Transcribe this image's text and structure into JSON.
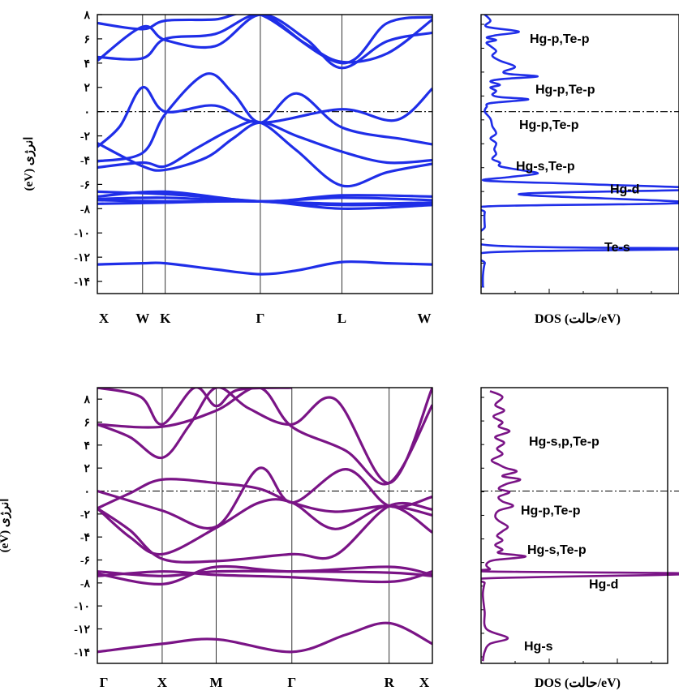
{
  "chart_data": [
    {
      "type": "line",
      "panel": "band-structure",
      "ylabel": "انرژی (eV)",
      "ylim": [
        -15,
        8
      ],
      "yticks": [
        8,
        6,
        4,
        2,
        0,
        -2,
        -4,
        -6,
        -8,
        -10,
        -12,
        -14
      ],
      "ytick_labels": [
        "۸",
        "۶",
        "۴",
        "۲",
        "۰",
        "-۲",
        "-۴",
        "-۶",
        "-۸",
        "-۱۰",
        "-۱۲",
        "-۱۴"
      ],
      "kpoints": [
        {
          "label": "X",
          "pos": 0
        },
        {
          "label": "W",
          "pos": 0.5
        },
        {
          "label": "K",
          "pos": 0.75
        },
        {
          "label": "Γ",
          "pos": 1.8
        },
        {
          "label": "L",
          "pos": 2.7
        },
        {
          "label": "W",
          "pos": 3.7
        }
      ],
      "fermi_level": 0,
      "color": "#1f2ee8",
      "series": [
        {
          "values": [
            [
              0,
              -12.6
            ],
            [
              0.5,
              -12.5
            ],
            [
              0.75,
              -12.5
            ],
            [
              1.3,
              -13.0
            ],
            [
              1.8,
              -13.4
            ],
            [
              2.2,
              -13.1
            ],
            [
              2.7,
              -12.4
            ],
            [
              3.2,
              -12.5
            ],
            [
              3.7,
              -12.6
            ]
          ]
        },
        {
          "values": [
            [
              0,
              -7.3
            ],
            [
              0.75,
              -7.4
            ],
            [
              1.8,
              -7.4
            ],
            [
              2.7,
              -7.6
            ],
            [
              3.7,
              -7.5
            ]
          ]
        },
        {
          "values": [
            [
              0,
              -7.2
            ],
            [
              0.75,
              -7.1
            ],
            [
              1.8,
              -7.4
            ],
            [
              2.7,
              -7.1
            ],
            [
              3.7,
              -7.3
            ]
          ]
        },
        {
          "values": [
            [
              0,
              -7.6
            ],
            [
              0.75,
              -7.5
            ],
            [
              1.8,
              -7.4
            ],
            [
              2.7,
              -8.0
            ],
            [
              3.7,
              -7.7
            ]
          ]
        },
        {
          "values": [
            [
              0,
              -6.6
            ],
            [
              0.75,
              -6.8
            ],
            [
              1.3,
              -7.1
            ],
            [
              1.8,
              -7.4
            ],
            [
              2.7,
              -7.7
            ],
            [
              3.7,
              -7.6
            ]
          ]
        },
        {
          "values": [
            [
              0,
              -7.0
            ],
            [
              0.75,
              -6.6
            ],
            [
              1.8,
              -7.4
            ],
            [
              2.7,
              -6.9
            ],
            [
              3.7,
              -7.0
            ]
          ]
        },
        {
          "values": [
            [
              0,
              -4.6
            ],
            [
              0.5,
              -4.2
            ],
            [
              0.75,
              -4.5
            ],
            [
              1.1,
              -3.0
            ],
            [
              1.5,
              -1.4
            ],
            [
              1.8,
              -0.9
            ],
            [
              2.2,
              -3.2
            ],
            [
              2.7,
              -6.1
            ],
            [
              3.2,
              -5.0
            ],
            [
              3.7,
              -4.3
            ]
          ]
        },
        {
          "values": [
            [
              0,
              -2.6
            ],
            [
              0.5,
              -4.5
            ],
            [
              0.75,
              -4.8
            ],
            [
              1.2,
              -3.8
            ],
            [
              1.5,
              -2.2
            ],
            [
              1.8,
              -0.9
            ],
            [
              2.2,
              -2.0
            ],
            [
              2.7,
              -3.3
            ],
            [
              3.2,
              -4.2
            ],
            [
              3.7,
              -4.0
            ]
          ]
        },
        {
          "values": [
            [
              0,
              -2.9
            ],
            [
              0.25,
              -1.2
            ],
            [
              0.5,
              2.0
            ],
            [
              0.75,
              0.0
            ],
            [
              1.3,
              0.5
            ],
            [
              1.8,
              -0.9
            ],
            [
              2.7,
              0.2
            ],
            [
              3.3,
              -0.7
            ],
            [
              3.7,
              1.9
            ]
          ]
        },
        {
          "values": [
            [
              0,
              -4.1
            ],
            [
              0.5,
              -3.4
            ],
            [
              0.75,
              -0.2
            ],
            [
              1.2,
              3.1
            ],
            [
              1.5,
              1.5
            ],
            [
              1.8,
              -0.9
            ],
            [
              2.2,
              1.5
            ],
            [
              2.7,
              -1.3
            ],
            [
              3.4,
              -2.3
            ],
            [
              3.7,
              -2.7
            ]
          ]
        },
        {
          "values": [
            [
              0,
              4.2
            ],
            [
              0.5,
              7.0
            ],
            [
              0.75,
              5.9
            ],
            [
              1.3,
              5.4
            ],
            [
              1.8,
              8.0
            ],
            [
              2.3,
              6.0
            ],
            [
              2.7,
              3.6
            ],
            [
              3.2,
              5.8
            ],
            [
              3.7,
              6.5
            ]
          ]
        },
        {
          "values": [
            [
              0,
              4.5
            ],
            [
              0.5,
              4.4
            ],
            [
              0.75,
              6.0
            ],
            [
              1.3,
              6.4
            ],
            [
              1.8,
              8.0
            ],
            [
              2.3,
              5.6
            ],
            [
              2.7,
              4.1
            ],
            [
              3.2,
              4.8
            ],
            [
              3.7,
              7.6
            ]
          ]
        },
        {
          "values": [
            [
              0,
              7.3
            ],
            [
              0.5,
              6.8
            ],
            [
              0.75,
              7.5
            ],
            [
              1.3,
              7.6
            ],
            [
              1.8,
              8.0
            ],
            [
              2.7,
              4.0
            ],
            [
              3.2,
              7.3
            ],
            [
              3.7,
              7.8
            ]
          ]
        }
      ]
    },
    {
      "type": "line",
      "panel": "dos",
      "xlabel": "DOS (حالت/eV)",
      "ylim": [
        -15,
        8
      ],
      "fermi_level": 0,
      "color": "#1f2ee8",
      "annotations": [
        {
          "text": "Hg-p,Te-p",
          "y": 6.0
        },
        {
          "text": "Hg-p,Te-p",
          "y": 1.8
        },
        {
          "text": "Hg-p,Te-p",
          "y": -1.1
        },
        {
          "text": "Hg-s,Te-p",
          "y": -4.5
        },
        {
          "text": "Hg-d",
          "y": -6.4
        },
        {
          "text": "Te-s",
          "y": -11.2
        }
      ],
      "x": [
        0.02,
        0.05,
        0.03,
        0.2,
        0.08,
        0.03,
        0.08,
        0.03,
        0.05,
        0.08,
        0.06,
        0.1,
        0.18,
        0.12,
        0.15,
        0.3,
        0.12,
        0.05,
        0.1,
        0.05,
        0.08,
        0.06,
        0.1,
        0.25,
        0.05,
        0.03,
        0.02,
        0.05,
        0.06,
        0.08,
        0.05,
        0.08,
        0.07,
        0.08,
        0.06,
        0.1,
        0.1,
        0.2,
        0.3,
        0.15,
        0.03,
        0.6,
        1.2,
        0.2,
        1.1,
        0.05,
        0.02,
        0.02,
        0.03,
        1.2,
        0.05,
        0.02,
        0.01,
        0.01
      ],
      "y": [
        8.0,
        7.5,
        7.0,
        6.6,
        6.3,
        6.1,
        5.9,
        5.7,
        5.4,
        5.0,
        4.6,
        4.2,
        3.7,
        3.3,
        3.1,
        2.9,
        2.7,
        2.5,
        2.2,
        2.0,
        1.7,
        1.4,
        1.2,
        1.0,
        0.7,
        0.4,
        0.0,
        -0.6,
        -1.2,
        -1.8,
        -2.2,
        -2.6,
        -3.1,
        -3.5,
        -3.9,
        -4.2,
        -4.5,
        -4.8,
        -5.1,
        -5.4,
        -5.7,
        -6.0,
        -6.4,
        -6.8,
        -7.5,
        -7.8,
        -8.3,
        -9.5,
        -11.0,
        -11.3,
        -11.6,
        -12.5,
        -13.5,
        -14.5
      ]
    },
    {
      "type": "line",
      "panel": "band-structure",
      "ylabel": "انرژی (eV)",
      "ylim": [
        -15,
        9
      ],
      "yticks": [
        8,
        6,
        4,
        2,
        0,
        -2,
        -4,
        -6,
        -8,
        -10,
        -12,
        -14
      ],
      "ytick_labels": [
        "۸",
        "۶",
        "۴",
        "۲",
        "۰",
        "-۲",
        "-۴",
        "-۶",
        "-۸",
        "-۱۰",
        "-۱۲",
        "-۱۴"
      ],
      "kpoints": [
        {
          "label": "Γ",
          "pos": 0
        },
        {
          "label": "X",
          "pos": 0.6
        },
        {
          "label": "M",
          "pos": 1.1
        },
        {
          "label": "Γ",
          "pos": 1.8
        },
        {
          "label": "R",
          "pos": 2.7
        },
        {
          "label": "X",
          "pos": 3.1
        }
      ],
      "fermi_level": 0,
      "color": "#7a1486",
      "series": [
        {
          "values": [
            [
              0,
              -14.0
            ],
            [
              0.6,
              -13.3
            ],
            [
              1.1,
              -12.9
            ],
            [
              1.8,
              -14.0
            ],
            [
              2.3,
              -12.5
            ],
            [
              2.7,
              -11.5
            ],
            [
              3.1,
              -13.3
            ]
          ]
        },
        {
          "values": [
            [
              0,
              -7.0
            ],
            [
              0.6,
              -7.4
            ],
            [
              1.1,
              -7.0
            ],
            [
              1.8,
              -7.0
            ],
            [
              2.7,
              -7.1
            ],
            [
              3.1,
              -7.4
            ]
          ]
        },
        {
          "values": [
            [
              0,
              -7.2
            ],
            [
              0.6,
              -8.1
            ],
            [
              1.1,
              -6.6
            ],
            [
              1.8,
              -7.0
            ],
            [
              2.7,
              -6.6
            ],
            [
              3.1,
              -7.3
            ]
          ]
        },
        {
          "values": [
            [
              0,
              -7.4
            ],
            [
              0.6,
              -7.0
            ],
            [
              1.1,
              -7.3
            ],
            [
              1.8,
              -7.5
            ],
            [
              2.7,
              -7.9
            ],
            [
              3.1,
              -7.0
            ]
          ]
        },
        {
          "values": [
            [
              0,
              -1.5
            ],
            [
              0.3,
              -4.0
            ],
            [
              0.6,
              -5.5
            ],
            [
              1.1,
              -3.2
            ],
            [
              1.5,
              -1.0
            ],
            [
              1.8,
              -1.0
            ],
            [
              2.2,
              -3.3
            ],
            [
              2.7,
              -1.3
            ],
            [
              3.1,
              -3.6
            ]
          ]
        },
        {
          "values": [
            [
              0,
              -1.5
            ],
            [
              0.3,
              -0.2
            ],
            [
              0.6,
              1.0
            ],
            [
              1.1,
              0.7
            ],
            [
              1.5,
              0.2
            ],
            [
              1.8,
              -1.0
            ],
            [
              2.2,
              -1.8
            ],
            [
              2.7,
              -1.3
            ],
            [
              3.1,
              -2.1
            ]
          ]
        },
        {
          "values": [
            [
              0,
              -1.5
            ],
            [
              0.3,
              -3.4
            ],
            [
              0.6,
              -5.9
            ],
            [
              1.1,
              -6.1
            ],
            [
              1.8,
              -5.5
            ],
            [
              2.2,
              -5.6
            ],
            [
              2.7,
              -1.3
            ],
            [
              3.1,
              -1.6
            ]
          ]
        },
        {
          "values": [
            [
              0,
              0.0
            ],
            [
              0.6,
              -1.7
            ],
            [
              1.1,
              -3.1
            ],
            [
              1.5,
              2.0
            ],
            [
              1.8,
              -1.0
            ],
            [
              2.3,
              1.9
            ],
            [
              2.7,
              -1.3
            ],
            [
              3.1,
              -0.5
            ]
          ]
        },
        {
          "values": [
            [
              0,
              5.8
            ],
            [
              0.3,
              4.7
            ],
            [
              0.6,
              2.9
            ],
            [
              0.85,
              5.7
            ],
            [
              1.1,
              9.0
            ],
            [
              1.4,
              7.2
            ],
            [
              1.8,
              5.8
            ],
            [
              2.2,
              8.0
            ],
            [
              2.7,
              0.7
            ],
            [
              3.1,
              9.0
            ]
          ]
        },
        {
          "values": [
            [
              0,
              5.8
            ],
            [
              0.6,
              5.6
            ],
            [
              1.1,
              7.0
            ],
            [
              1.5,
              9.0
            ],
            [
              1.8,
              5.6
            ],
            [
              2.3,
              3.5
            ],
            [
              2.7,
              0.7
            ],
            [
              3.1,
              7.5
            ]
          ]
        },
        {
          "values": [
            [
              0,
              9.0
            ],
            [
              0.4,
              8.2
            ],
            [
              0.6,
              5.8
            ],
            [
              0.9,
              9.0
            ],
            [
              1.1,
              7.4
            ],
            [
              1.3,
              8.8
            ],
            [
              1.8,
              9.0
            ]
          ]
        }
      ]
    },
    {
      "type": "line",
      "panel": "dos",
      "xlabel": "DOS (حالت/eV)",
      "ylim": [
        -15,
        9
      ],
      "fermi_level": 0,
      "color": "#7a1486",
      "annotations": [
        {
          "text": "Hg-s,p,Te-p",
          "y": 4.3
        },
        {
          "text": "Hg-p,Te-p",
          "y": -1.7
        },
        {
          "text": "Hg-s,Te-p",
          "y": -5.1
        },
        {
          "text": "Hg-d",
          "y": -8.1
        },
        {
          "text": "Hg-s",
          "y": -13.5
        }
      ],
      "x": [
        0.05,
        0.12,
        0.08,
        0.13,
        0.07,
        0.12,
        0.1,
        0.16,
        0.08,
        0.13,
        0.09,
        0.12,
        0.06,
        0.1,
        0.14,
        0.2,
        0.12,
        0.22,
        0.14,
        0.1,
        0.16,
        0.1,
        0.12,
        0.18,
        0.1,
        0.08,
        0.1,
        0.15,
        0.12,
        0.09,
        0.12,
        0.08,
        0.12,
        0.1,
        0.25,
        0.08,
        0.04,
        0.03,
        0.05,
        0.04,
        1.2,
        0.03,
        0.02,
        0.01,
        0.02,
        0.03,
        0.15,
        0.05,
        0.02,
        0.01
      ],
      "y": [
        8.7,
        8.2,
        7.5,
        7.0,
        6.5,
        6.0,
        5.6,
        5.2,
        4.7,
        4.2,
        3.7,
        3.2,
        2.7,
        2.3,
        2.0,
        1.7,
        1.3,
        1.0,
        0.6,
        0.2,
        -0.1,
        -0.5,
        -0.9,
        -1.3,
        -1.7,
        -2.2,
        -2.6,
        -3.1,
        -3.5,
        -3.9,
        -4.3,
        -4.7,
        -5.1,
        -5.4,
        -5.7,
        -6.0,
        -6.2,
        -6.5,
        -6.8,
        -7.0,
        -7.2,
        -7.6,
        -8.0,
        -9.0,
        -10.5,
        -12.0,
        -12.8,
        -13.3,
        -14.0,
        -14.8
      ]
    }
  ]
}
